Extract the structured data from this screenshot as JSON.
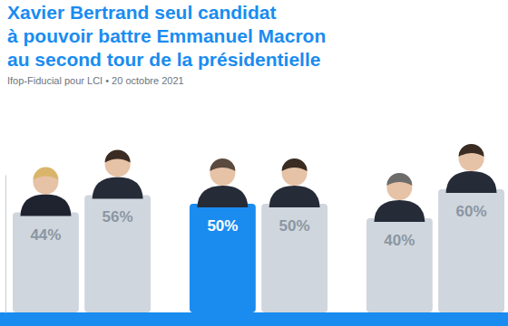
{
  "chart_data": {
    "type": "bar",
    "title": "Xavier Bertrand seul candidat\nà pouvoir battre Emmanuel Macron\nau second tour de la présidentielle",
    "subtitle": "Ifop-Fiducial pour LCI • 20 octobre 2021",
    "categories": [
      null,
      null,
      null,
      null,
      null,
      null
    ],
    "values": [
      44,
      56,
      50,
      50,
      40,
      60
    ],
    "value_labels": [
      "44%",
      "56%",
      "50%",
      "50%",
      "40%",
      "60%"
    ],
    "colors": [
      "#d0d6dd",
      "#d0d6dd",
      "#1a8cf0",
      "#d0d6dd",
      "#d0d6dd",
      "#d0d6dd"
    ],
    "ylim": [
      -25,
      70
    ],
    "data_labels": true,
    "tick_labels": false,
    "grid": false
  }
}
